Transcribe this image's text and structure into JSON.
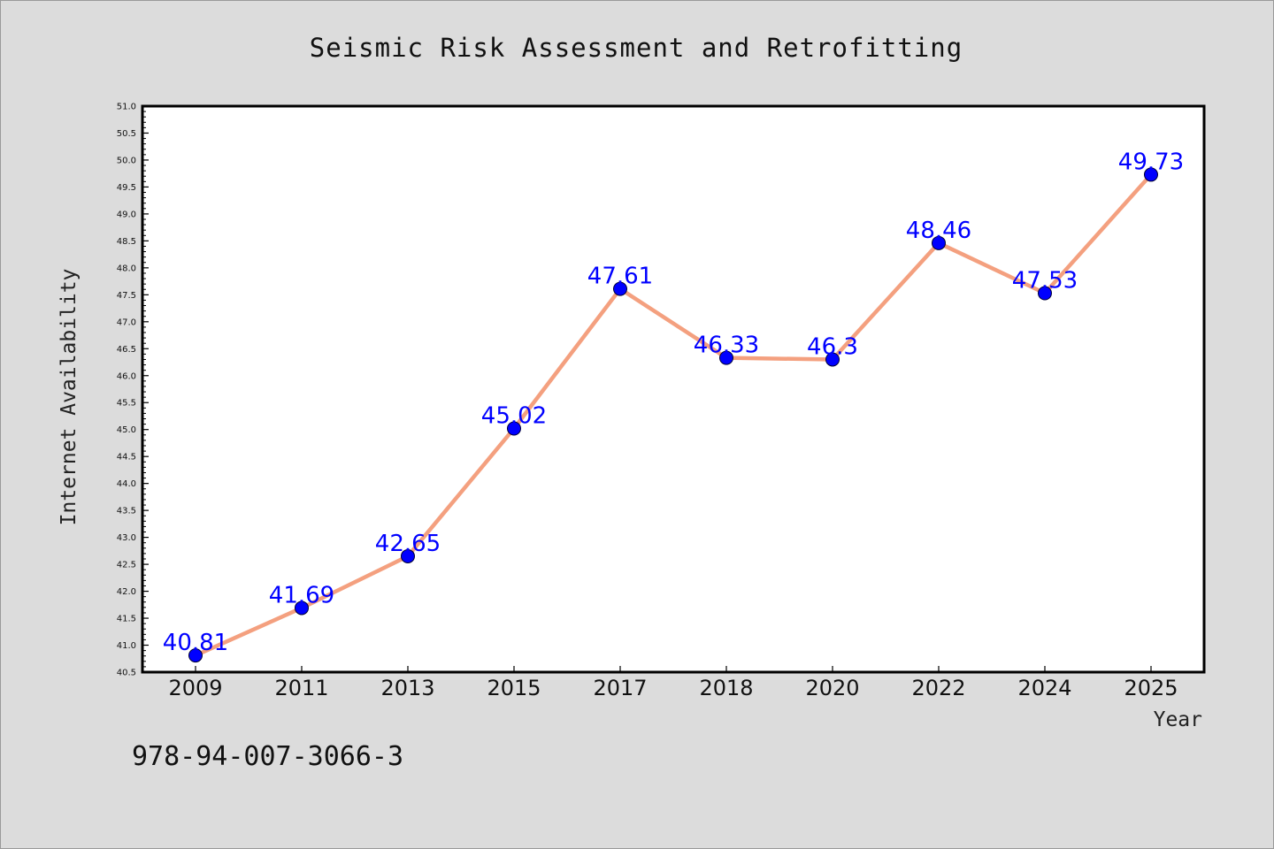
{
  "chart_data": {
    "type": "line",
    "title": "Seismic Risk Assessment and Retrofitting",
    "xlabel": "Year",
    "ylabel": "Internet Availability",
    "categories": [
      "2009",
      "2011",
      "2013",
      "2015",
      "2017",
      "2018",
      "2020",
      "2022",
      "2024",
      "2025"
    ],
    "series": [
      {
        "values": [
          40.81,
          41.69,
          42.65,
          45.02,
          47.61,
          46.33,
          46.3,
          48.46,
          47.53,
          49.73
        ],
        "data_labels": [
          "40.81",
          "41.69",
          "42.65",
          "45.02",
          "47.61",
          "46.33",
          "46.3",
          "48.46",
          "47.53",
          "49.73"
        ],
        "line_color": "#f4a07f",
        "marker_color": "#0000ff"
      }
    ],
    "ylim": [
      40.5,
      51.0
    ],
    "yticks": [
      "40.5",
      "41.0",
      "41.5",
      "42.0",
      "42.5",
      "43.0",
      "43.5",
      "44.0",
      "44.5",
      "45.0",
      "45.5",
      "46.0",
      "46.5",
      "47.0",
      "47.5",
      "48.0",
      "48.5",
      "49.0",
      "49.5",
      "50.0",
      "50.5",
      "51.0"
    ],
    "grid": false,
    "legend": "none"
  },
  "footer": {
    "isbn": "978-94-007-3066-3"
  },
  "colors": {
    "background": "#dcdcdc",
    "plot_background": "#ffffff",
    "line": "#f4a07f",
    "marker": "#0000ff",
    "data_label": "#0000ff"
  }
}
